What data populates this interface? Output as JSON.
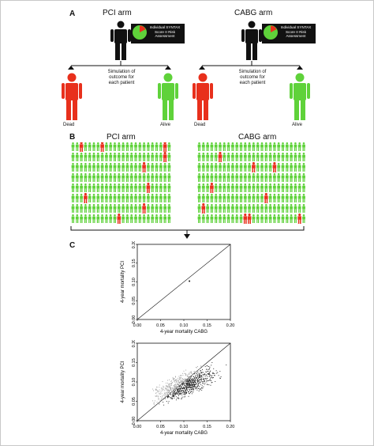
{
  "panels": {
    "a": "A",
    "b": "B",
    "c": "C"
  },
  "panel_a": {
    "pci_arm_title": "PCI arm",
    "cabg_arm_title": "CABG arm",
    "risk_box_lines": [
      "Individual SYNTAX",
      "Score II Risk",
      "Assessment"
    ],
    "simulation_lines": [
      "Simulation of",
      "outcome for",
      "each patient"
    ],
    "dead_label": "Dead",
    "alive_label": "Alive"
  },
  "panel_b": {
    "pci_arm_title": "PCI arm",
    "cabg_arm_title": "CABG arm"
  },
  "colors": {
    "dead": "#e8301c",
    "alive": "#5fd23a",
    "patient": "#111111"
  },
  "chart_data": [
    {
      "type": "scatter",
      "xlabel": "4-year mortality CABG",
      "ylabel": "4-year mortality PCI",
      "xlim": [
        0.0,
        0.2
      ],
      "ylim": [
        0.0,
        0.2
      ],
      "xticks": [
        "0.00",
        "0.05",
        "0.10",
        "0.15",
        "0.20"
      ],
      "yticks": [
        "0.00",
        "0.05",
        "0.10",
        "0.15",
        "0.20"
      ],
      "reference_line": "y = x",
      "points": [
        [
          0.112,
          0.102
        ]
      ]
    },
    {
      "type": "scatter",
      "xlabel": "4-year mortality CABG",
      "ylabel": "4-year mortality PCI",
      "xlim": [
        0.0,
        0.2
      ],
      "ylim": [
        0.0,
        0.2
      ],
      "xticks": [
        "0.00",
        "0.05",
        "0.10",
        "0.15",
        "0.20"
      ],
      "yticks": [
        "0.00",
        "0.05",
        "0.10",
        "0.15",
        "0.20"
      ],
      "reference_line": "y = x",
      "cloud_center": [
        0.105,
        0.095
      ],
      "series": [
        {
          "color": "#111111",
          "note": "patients above line"
        },
        {
          "color": "#9a9a9a",
          "note": "patients below line"
        }
      ]
    }
  ]
}
